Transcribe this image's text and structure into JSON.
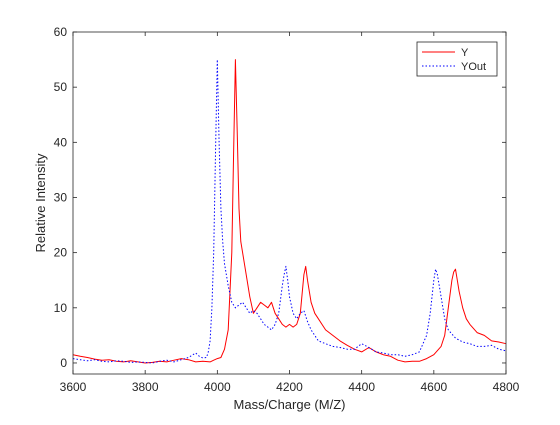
{
  "chart_data": {
    "type": "line",
    "title": "",
    "xlabel": "Mass/Charge (M/Z)",
    "ylabel": "Relative Intensity",
    "xlim": [
      3600,
      4800
    ],
    "ylim": [
      -2,
      60
    ],
    "xticks": [
      3600,
      3800,
      4000,
      4200,
      4400,
      4600,
      4800
    ],
    "yticks": [
      0,
      10,
      20,
      30,
      40,
      50,
      60
    ],
    "grid": false,
    "legend_position": "top-right",
    "series": [
      {
        "name": "Y",
        "color": "#ff0000",
        "line_style": "solid",
        "x": [
          3600,
          3620,
          3640,
          3660,
          3680,
          3700,
          3720,
          3740,
          3760,
          3780,
          3800,
          3820,
          3840,
          3860,
          3880,
          3900,
          3920,
          3940,
          3960,
          3980,
          3990,
          4000,
          4010,
          4020,
          4030,
          4040,
          4045,
          4050,
          4055,
          4060,
          4065,
          4070,
          4080,
          4090,
          4100,
          4110,
          4120,
          4130,
          4140,
          4150,
          4160,
          4170,
          4180,
          4190,
          4200,
          4210,
          4220,
          4230,
          4240,
          4245,
          4250,
          4255,
          4260,
          4270,
          4280,
          4290,
          4300,
          4320,
          4340,
          4360,
          4380,
          4400,
          4420,
          4440,
          4460,
          4480,
          4500,
          4520,
          4540,
          4560,
          4580,
          4600,
          4620,
          4630,
          4640,
          4650,
          4655,
          4660,
          4665,
          4670,
          4680,
          4690,
          4700,
          4720,
          4740,
          4760,
          4780,
          4800
        ],
        "y": [
          1.5,
          1.2,
          1.0,
          0.7,
          0.5,
          0.6,
          0.3,
          0.2,
          0.4,
          0.2,
          0.0,
          0.1,
          0.3,
          0.2,
          0.5,
          0.8,
          0.6,
          0.2,
          0.3,
          0.2,
          0.5,
          0.8,
          1.0,
          2.5,
          6.0,
          20.0,
          38.0,
          55.0,
          42.0,
          28.0,
          22.0,
          20.0,
          16.0,
          12.0,
          9.0,
          10.0,
          11.0,
          10.5,
          10.0,
          11.0,
          9.0,
          8.0,
          7.0,
          6.5,
          7.0,
          6.5,
          7.0,
          9.0,
          16.0,
          17.5,
          15.0,
          13.0,
          11.0,
          9.0,
          8.0,
          7.0,
          6.0,
          5.0,
          4.0,
          3.2,
          2.5,
          2.0,
          2.8,
          2.0,
          1.5,
          1.2,
          0.5,
          0.2,
          0.3,
          0.3,
          0.8,
          1.5,
          3.0,
          5.0,
          10.0,
          15.0,
          16.5,
          17.0,
          15.0,
          13.0,
          10.0,
          8.0,
          7.0,
          5.5,
          5.0,
          4.0,
          3.8,
          3.5
        ]
      },
      {
        "name": "YOut",
        "color": "#0000ff",
        "line_style": "dotted",
        "x": [
          3600,
          3620,
          3640,
          3660,
          3680,
          3700,
          3720,
          3740,
          3760,
          3780,
          3800,
          3820,
          3840,
          3860,
          3880,
          3900,
          3920,
          3940,
          3950,
          3960,
          3970,
          3975,
          3980,
          3985,
          3990,
          3995,
          4000,
          4005,
          4010,
          4015,
          4020,
          4030,
          4040,
          4050,
          4060,
          4070,
          4080,
          4090,
          4100,
          4110,
          4120,
          4130,
          4140,
          4150,
          4160,
          4170,
          4180,
          4185,
          4190,
          4195,
          4200,
          4210,
          4220,
          4230,
          4240,
          4250,
          4260,
          4280,
          4300,
          4320,
          4340,
          4360,
          4380,
          4400,
          4420,
          4440,
          4460,
          4480,
          4500,
          4520,
          4540,
          4560,
          4570,
          4580,
          4590,
          4595,
          4600,
          4605,
          4610,
          4620,
          4630,
          4640,
          4660,
          4680,
          4700,
          4720,
          4740,
          4760,
          4780,
          4800
        ],
        "y": [
          0.8,
          0.6,
          0.4,
          0.6,
          0.3,
          0.2,
          0.4,
          0.3,
          0.1,
          0.2,
          0.1,
          0.0,
          0.3,
          0.5,
          0.2,
          0.6,
          1.0,
          1.8,
          1.2,
          0.9,
          1.0,
          2.0,
          4.0,
          10.0,
          20.0,
          38.0,
          55.0,
          40.0,
          28.0,
          22.0,
          18.0,
          14.0,
          11.0,
          10.0,
          10.5,
          11.0,
          10.0,
          9.0,
          9.5,
          9.0,
          8.0,
          7.0,
          6.5,
          6.0,
          7.0,
          9.0,
          14.0,
          16.0,
          17.5,
          15.0,
          12.0,
          9.0,
          8.0,
          9.0,
          9.5,
          7.5,
          6.0,
          4.0,
          3.5,
          3.0,
          2.8,
          2.5,
          2.5,
          3.5,
          2.8,
          2.0,
          1.8,
          1.5,
          1.5,
          1.2,
          1.5,
          2.0,
          3.5,
          5.0,
          9.0,
          12.0,
          15.0,
          17.0,
          16.0,
          12.0,
          8.0,
          6.0,
          4.5,
          3.8,
          3.5,
          3.0,
          3.0,
          3.2,
          2.5,
          2.2
        ]
      }
    ]
  }
}
